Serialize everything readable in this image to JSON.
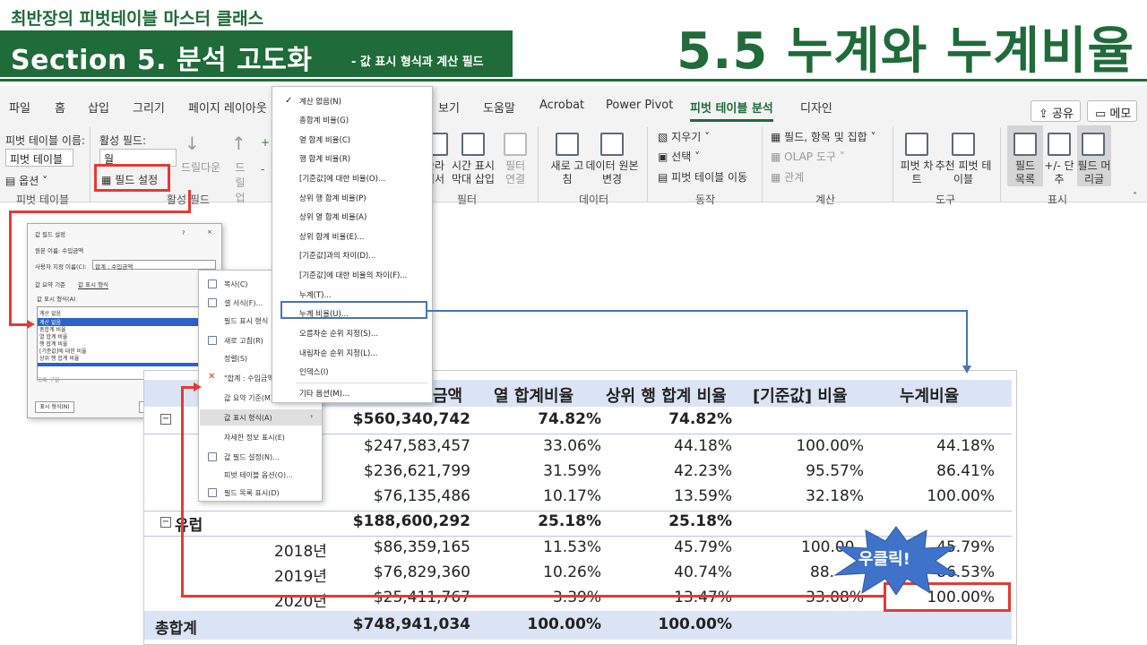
{
  "banner": {
    "series": "최반장의 피벗테이블 마스터 클래스",
    "section": "Section 5. 분석 고도화",
    "section_sub": "- 값 표시 형식과 계산 필드",
    "title": "5.5 누계와 누계비율"
  },
  "ribbon": {
    "tabs": [
      "파일",
      "홈",
      "삽입",
      "그리기",
      "페이지 레이아웃",
      "보기",
      "도움말",
      "Acrobat",
      "Power Pivot",
      "피벗 테이블 분석",
      "디자인"
    ],
    "active_tab": "피벗 테이블 분석",
    "share": "공유",
    "memo": "메모",
    "pivot_name_label": "피벗 테이블 이름:",
    "pivot_name_value": "피벗 테이블",
    "options": "옵션",
    "group_pivot": "피벗 테이블",
    "active_field_label": "활성 필드:",
    "active_field_value": "월",
    "field_settings": "필드 설정",
    "drill_down": "드릴다운",
    "drill_up": "드릴 업",
    "group_active_field": "활성 필드",
    "slicer": "슬라이서 삽입",
    "timeline": "시간 표시 막대 삽입",
    "filter_connect": "필터 연결",
    "group_filter": "필터",
    "refresh": "새로 고침",
    "data_source": "데이터 원본 변경",
    "group_data": "데이터",
    "clear": "지우기",
    "select": "선택",
    "move": "피벗 테이블 이동",
    "group_action": "동작",
    "fields_items": "필드, 항목 및 집합",
    "olap": "OLAP 도구",
    "relations": "관계",
    "group_calc": "계산",
    "pivot_chart": "피벗 차트",
    "recommended": "추천 피벗 테이블",
    "group_tools": "도구",
    "field_list": "필드 목록",
    "buttons": "+/- 단추",
    "headers": "필드 머리글",
    "group_show": "표시"
  },
  "value_menu": {
    "items": [
      "계산 없음(N)",
      "총합계 비율(G)",
      "열 합계 비율(C)",
      "행 합계 비율(R)",
      "[기준값]에 대한 비율(O)...",
      "상위 행 합계 비율(P)",
      "상위 열 합계 비율(A)",
      "상위 합계 비율(E)...",
      "[기준값]과의 차이(D)...",
      "[기준값]에 대한 비율의 차이(F)...",
      "누계(T)...",
      "누계 비율(U)...",
      "오름차순 순위 지정(S)...",
      "내림차순 순위 지정(L)...",
      "인덱스(I)",
      "기타 옵션(M)..."
    ],
    "checked": "계산 없음(N)"
  },
  "dialog": {
    "title": "값 필드 설정",
    "source_label": "원본 이름: 수입금액",
    "custom_label": "사용자 지정 이름(C):",
    "custom_value": "합계 : 수입금액",
    "tab1": "값 요약 기준",
    "tab2": "값 표시 형식",
    "show_as_label": "값 표시 형식(A)",
    "current": "계산 없음",
    "list": [
      "계산 없음",
      "총합계 비율",
      "열 합계 비율",
      "행 합계 비율",
      "[기준값]에 대한 비율",
      "상위 행 합계 비율"
    ],
    "base_field_label": "기본 필드:",
    "base_field_value": "대륙 구분",
    "number_format": "표시 형식(N)",
    "ok": "확인",
    "cancel": "취소"
  },
  "rc_menu": {
    "items": [
      "복사(C)",
      "셀 서식(F)...",
      "필드 표시 형식",
      "새로 고침(R)",
      "정렬(S)",
      "\"합계 : 수입금액\" 제거(V)",
      "값 요약 기준(M)",
      "값 표시 형식(A)",
      "자세한 정보 표시(E)",
      "값 필드 설정(N)...",
      "피벗 테이블 옵션(O)...",
      "필드 목록 표시(D)"
    ]
  },
  "pivot": {
    "headers": [
      "금액",
      "열 합계비율",
      "상위 행 합계 비율",
      "[기준값] 비율",
      "누계비율"
    ],
    "rows": [
      {
        "label": "",
        "amount": "$560,340,742",
        "col_pct": "74.82%",
        "parent_pct": "74.82%",
        "base_pct": "",
        "cum_pct": "",
        "bold": true
      },
      {
        "label": "",
        "amount": "$247,583,457",
        "col_pct": "33.06%",
        "parent_pct": "44.18%",
        "base_pct": "100.00%",
        "cum_pct": "44.18%",
        "bold": false
      },
      {
        "label": "",
        "amount": "$236,621,799",
        "col_pct": "31.59%",
        "parent_pct": "42.23%",
        "base_pct": "95.57%",
        "cum_pct": "86.41%",
        "bold": false
      },
      {
        "label": "",
        "amount": "$76,135,486",
        "col_pct": "10.17%",
        "parent_pct": "13.59%",
        "base_pct": "32.18%",
        "cum_pct": "100.00%",
        "bold": false
      },
      {
        "label": "유럽",
        "amount": "$188,600,292",
        "col_pct": "25.18%",
        "parent_pct": "25.18%",
        "base_pct": "",
        "cum_pct": "",
        "bold": true
      },
      {
        "label": "2018년",
        "amount": "$86,359,165",
        "col_pct": "11.53%",
        "parent_pct": "45.79%",
        "base_pct": "100.00",
        "cum_pct": "45.79%",
        "bold": false
      },
      {
        "label": "2019년",
        "amount": "$76,829,360",
        "col_pct": "10.26%",
        "parent_pct": "40.74%",
        "base_pct": "88.",
        "cum_pct": "86.53%",
        "bold": false
      },
      {
        "label": "2020년",
        "amount": "$25,411,767",
        "col_pct": "3.39%",
        "parent_pct": "13.47%",
        "base_pct": "33.08%",
        "cum_pct": "100.00%",
        "bold": false
      }
    ],
    "total": {
      "label": "총합계",
      "amount": "$748,941,034",
      "col_pct": "100.00%",
      "parent_pct": "100.00%"
    }
  },
  "annotation": {
    "right_click": "우클릭!"
  },
  "colors": {
    "brand_green": "#1f6b3a",
    "highlight_red": "#e53935",
    "connector_blue": "#4a73b5",
    "table_band": "#dbe4f4"
  }
}
